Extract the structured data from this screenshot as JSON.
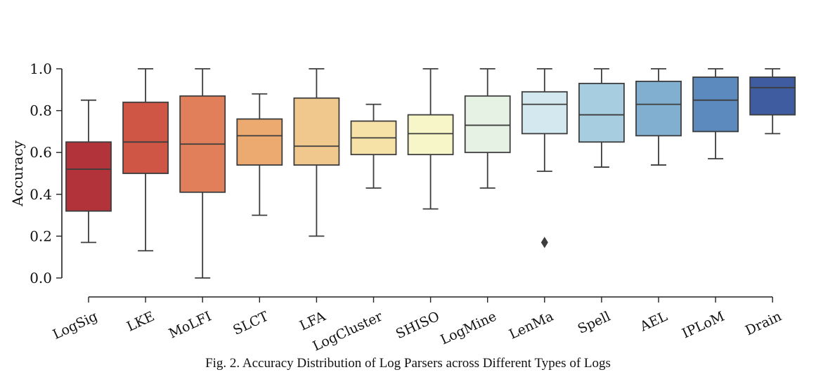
{
  "caption": "Fig. 2.  Accuracy Distribution of Log Parsers across Different Types of Logs",
  "chart_data": {
    "type": "box",
    "title": "",
    "xlabel": "",
    "ylabel": "Accuracy",
    "ylim": [
      0.0,
      1.0
    ],
    "yticks": [
      "0.0",
      "0.2",
      "0.4",
      "0.6",
      "0.8",
      "1.0"
    ],
    "grid": false,
    "categories": [
      "LogSig",
      "LKE",
      "MoLFI",
      "SLCT",
      "LFA",
      "LogCluster",
      "SHISO",
      "LogMine",
      "LenMa",
      "Spell",
      "AEL",
      "IPLoM",
      "Drain"
    ],
    "boxes": [
      {
        "name": "LogSig",
        "min": 0.17,
        "q1": 0.32,
        "median": 0.52,
        "q3": 0.65,
        "max": 0.85,
        "outliers": [],
        "color": "#b2333a"
      },
      {
        "name": "LKE",
        "min": 0.13,
        "q1": 0.5,
        "median": 0.65,
        "q3": 0.84,
        "max": 1.0,
        "outliers": [],
        "color": "#cf5545"
      },
      {
        "name": "MoLFI",
        "min": 0.0,
        "q1": 0.41,
        "median": 0.64,
        "q3": 0.87,
        "max": 1.0,
        "outliers": [],
        "color": "#e07f5a"
      },
      {
        "name": "SLCT",
        "min": 0.3,
        "q1": 0.54,
        "median": 0.68,
        "q3": 0.76,
        "max": 0.88,
        "outliers": [],
        "color": "#eca970"
      },
      {
        "name": "LFA",
        "min": 0.2,
        "q1": 0.54,
        "median": 0.63,
        "q3": 0.86,
        "max": 1.0,
        "outliers": [],
        "color": "#f0c88d"
      },
      {
        "name": "LogCluster",
        "min": 0.43,
        "q1": 0.59,
        "median": 0.67,
        "q3": 0.75,
        "max": 0.83,
        "outliers": [],
        "color": "#f6e2a6"
      },
      {
        "name": "SHISO",
        "min": 0.33,
        "q1": 0.59,
        "median": 0.69,
        "q3": 0.78,
        "max": 1.0,
        "outliers": [],
        "color": "#f7f6c9"
      },
      {
        "name": "LogMine",
        "min": 0.43,
        "q1": 0.6,
        "median": 0.73,
        "q3": 0.87,
        "max": 1.0,
        "outliers": [],
        "color": "#e6f2e4"
      },
      {
        "name": "LenMa",
        "min": 0.51,
        "q1": 0.69,
        "median": 0.83,
        "q3": 0.89,
        "max": 1.0,
        "outliers": [
          0.17
        ],
        "color": "#d3e8ef"
      },
      {
        "name": "Spell",
        "min": 0.53,
        "q1": 0.65,
        "median": 0.78,
        "q3": 0.93,
        "max": 1.0,
        "outliers": [],
        "color": "#a6cde0"
      },
      {
        "name": "AEL",
        "min": 0.54,
        "q1": 0.68,
        "median": 0.83,
        "q3": 0.94,
        "max": 1.0,
        "outliers": [],
        "color": "#80afd0"
      },
      {
        "name": "IPLoM",
        "min": 0.57,
        "q1": 0.7,
        "median": 0.85,
        "q3": 0.96,
        "max": 1.0,
        "outliers": [],
        "color": "#5c89be"
      },
      {
        "name": "Drain",
        "min": 0.69,
        "q1": 0.78,
        "median": 0.91,
        "q3": 0.96,
        "max": 1.0,
        "outliers": [],
        "color": "#3e5c9f"
      }
    ]
  }
}
